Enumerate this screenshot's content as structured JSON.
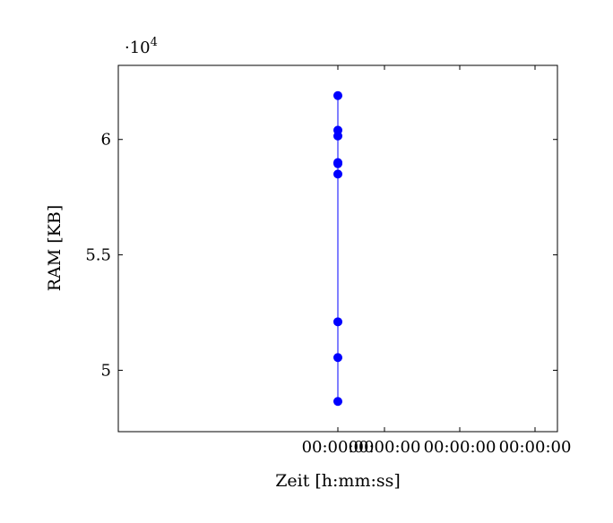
{
  "chart_data": {
    "type": "line",
    "title": "",
    "xlabel": "Zeit [h:mm:ss]",
    "ylabel": "RAM [KB]",
    "y_scale_label": "·10",
    "y_scale_exponent": "4",
    "x_tick_labels": [
      "00:00:00",
      "00:00:00",
      "00:00:00",
      "00:00:00"
    ],
    "y_tick_labels": [
      "5",
      "5.5",
      "6"
    ],
    "y_ticks": [
      50000,
      55000,
      60000
    ],
    "ylim": [
      47340,
      63210
    ],
    "grid": false,
    "legend": false,
    "series": [
      {
        "color": "#0000ff",
        "marker": "circle",
        "x_label": "00:00:00",
        "values": [
          61900,
          60400,
          60150,
          59000,
          58950,
          58500,
          52100,
          50550,
          48650
        ]
      }
    ]
  }
}
